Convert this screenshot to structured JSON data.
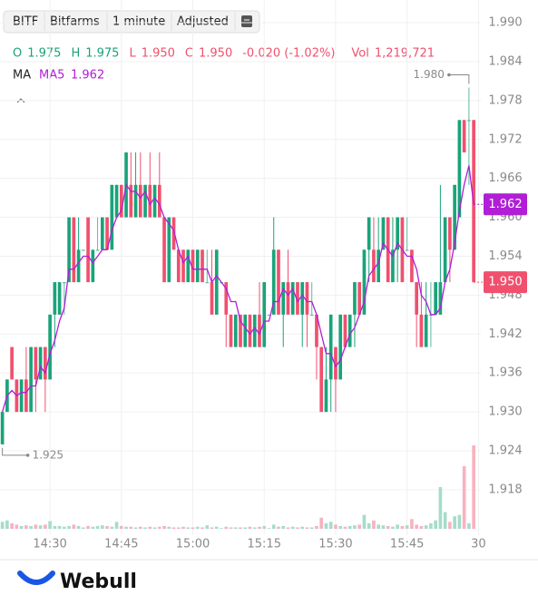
{
  "toolbar": {
    "symbol": "BITF",
    "name": "Bitfarms",
    "interval": "1 minute",
    "adjust": "Adjusted"
  },
  "quote": {
    "ohlc": [
      {
        "label": "O",
        "value": "1.975"
      },
      {
        "label": "H",
        "value": "1.975"
      },
      {
        "label": "L",
        "value": "1.950"
      },
      {
        "label": "C",
        "value": "1.950"
      }
    ],
    "change": "-0.020 (-1.02%)",
    "volume_label": "Vol",
    "volume_total": "1,219,721"
  },
  "indicator": {
    "label": "MA",
    "name": "MA5",
    "value": "1.962"
  },
  "brand": "Webull",
  "chart_data": {
    "type": "candlestick",
    "ylim": [
      1.911,
      1.9935
    ],
    "yticks": [
      {
        "value": 1.99,
        "label": "1.990"
      },
      1.984,
      1.978,
      1.972,
      1.966,
      {
        "value": 1.96,
        "label": "1.960"
      },
      1.954,
      1.948,
      1.942,
      1.936,
      {
        "value": 1.93,
        "label": "1.930"
      },
      1.924,
      1.918
    ],
    "xlim": [
      -0.5,
      100.5
    ],
    "xticks": [
      {
        "value": 10,
        "label": "14:30"
      },
      {
        "value": 25,
        "label": "14:45"
      },
      {
        "value": 40,
        "label": "15:00"
      },
      {
        "value": 55,
        "label": "15:15"
      },
      {
        "value": 70,
        "label": "15:30"
      },
      {
        "value": 85,
        "label": "15:45"
      },
      {
        "value": 100,
        "label": "30"
      }
    ],
    "grid": true,
    "up_color": "#1aa37a",
    "down_color": "#f0506e",
    "doji_color": "#5fb8a0",
    "open": [
      1.925,
      1.93,
      1.94,
      1.935,
      1.93,
      1.935,
      1.93,
      1.94,
      1.935,
      1.94,
      1.935,
      1.945,
      1.945,
      1.95,
      1.95,
      1.96,
      1.95,
      1.955,
      1.96,
      1.95,
      1.955,
      1.955,
      1.96,
      1.955,
      1.96,
      1.965,
      1.96,
      1.965,
      1.96,
      1.965,
      1.96,
      1.965,
      1.96,
      1.965,
      1.96,
      1.95,
      1.96,
      1.955,
      1.955,
      1.95,
      1.955,
      1.95,
      1.955,
      1.95,
      1.95,
      1.945,
      1.95,
      1.95,
      1.945,
      1.94,
      1.945,
      1.94,
      1.945,
      1.94,
      1.945,
      1.94,
      1.945,
      1.945,
      1.955,
      1.945,
      1.95,
      1.945,
      1.95,
      1.945,
      1.95,
      1.945,
      1.945,
      1.94,
      1.93,
      1.935,
      1.94,
      1.935,
      1.945,
      1.94,
      1.945,
      1.95,
      1.945,
      1.955,
      1.955,
      1.95,
      1.955,
      1.96,
      1.95,
      1.955,
      1.96,
      1.955,
      1.955,
      1.95,
      1.945,
      1.94,
      1.945,
      1.945,
      1.945,
      1.95,
      1.96,
      1.955,
      1.96,
      1.975,
      1.975,
      1.975
    ],
    "high": [
      1.93,
      1.935,
      1.94,
      1.935,
      1.935,
      1.94,
      1.94,
      1.94,
      1.94,
      1.94,
      1.945,
      1.95,
      1.95,
      1.95,
      1.96,
      1.96,
      1.96,
      1.955,
      1.96,
      1.955,
      1.96,
      1.96,
      1.96,
      1.965,
      1.965,
      1.965,
      1.97,
      1.97,
      1.97,
      1.97,
      1.965,
      1.97,
      1.965,
      1.97,
      1.96,
      1.96,
      1.96,
      1.955,
      1.955,
      1.955,
      1.955,
      1.955,
      1.955,
      1.955,
      1.955,
      1.955,
      1.95,
      1.95,
      1.945,
      1.945,
      1.945,
      1.945,
      1.945,
      1.945,
      1.95,
      1.95,
      1.945,
      1.96,
      1.955,
      1.95,
      1.955,
      1.95,
      1.95,
      1.95,
      1.95,
      1.95,
      1.945,
      1.94,
      1.94,
      1.945,
      1.94,
      1.945,
      1.945,
      1.945,
      1.95,
      1.95,
      1.955,
      1.96,
      1.96,
      1.96,
      1.96,
      1.96,
      1.96,
      1.96,
      1.96,
      1.96,
      1.955,
      1.95,
      1.95,
      1.95,
      1.95,
      1.95,
      1.965,
      1.96,
      1.96,
      1.965,
      1.975,
      1.975,
      1.98,
      1.975
    ],
    "low": [
      1.925,
      1.93,
      1.935,
      1.93,
      1.93,
      1.93,
      1.93,
      1.93,
      1.935,
      1.93,
      1.935,
      1.94,
      1.945,
      1.945,
      1.95,
      1.95,
      1.95,
      1.955,
      1.95,
      1.95,
      1.955,
      1.955,
      1.955,
      1.955,
      1.96,
      1.96,
      1.96,
      1.96,
      1.96,
      1.96,
      1.96,
      1.96,
      1.96,
      1.96,
      1.95,
      1.95,
      1.955,
      1.95,
      1.95,
      1.95,
      1.95,
      1.95,
      1.95,
      1.95,
      1.945,
      1.945,
      1.95,
      1.94,
      1.94,
      1.94,
      1.94,
      1.94,
      1.94,
      1.94,
      1.94,
      1.94,
      1.945,
      1.945,
      1.945,
      1.94,
      1.945,
      1.945,
      1.945,
      1.94,
      1.94,
      1.945,
      1.935,
      1.93,
      1.93,
      1.93,
      1.93,
      1.935,
      1.94,
      1.94,
      1.94,
      1.945,
      1.945,
      1.95,
      1.95,
      1.95,
      1.955,
      1.95,
      1.95,
      1.95,
      1.95,
      1.955,
      1.95,
      1.94,
      1.94,
      1.94,
      1.94,
      1.945,
      1.945,
      1.95,
      1.95,
      1.955,
      1.96,
      1.97,
      1.965,
      1.95
    ],
    "close": [
      1.93,
      1.935,
      1.935,
      1.93,
      1.935,
      1.93,
      1.94,
      1.935,
      1.94,
      1.935,
      1.945,
      1.95,
      1.95,
      1.95,
      1.96,
      1.95,
      1.955,
      1.955,
      1.95,
      1.955,
      1.955,
      1.96,
      1.955,
      1.965,
      1.965,
      1.96,
      1.97,
      1.96,
      1.965,
      1.96,
      1.965,
      1.96,
      1.965,
      1.96,
      1.95,
      1.96,
      1.955,
      1.95,
      1.95,
      1.955,
      1.95,
      1.955,
      1.95,
      1.95,
      1.945,
      1.955,
      1.95,
      1.945,
      1.94,
      1.945,
      1.94,
      1.945,
      1.94,
      1.945,
      1.94,
      1.95,
      1.945,
      1.955,
      1.945,
      1.95,
      1.945,
      1.95,
      1.945,
      1.95,
      1.945,
      1.945,
      1.94,
      1.93,
      1.935,
      1.945,
      1.935,
      1.945,
      1.94,
      1.945,
      1.95,
      1.945,
      1.955,
      1.96,
      1.95,
      1.955,
      1.96,
      1.95,
      1.955,
      1.96,
      1.95,
      1.955,
      1.95,
      1.945,
      1.94,
      1.945,
      1.945,
      1.95,
      1.95,
      1.96,
      1.955,
      1.965,
      1.975,
      1.97,
      1.975,
      1.95
    ],
    "volume": [
      5000,
      6000,
      4000,
      3000,
      2000,
      2500,
      2000,
      3000,
      2500,
      3000,
      5500,
      2000,
      2000,
      1500,
      2000,
      3000,
      2000,
      1000,
      2000,
      1500,
      2000,
      2500,
      2000,
      1500,
      5000,
      2000,
      1500,
      1500,
      1000,
      1500,
      1000,
      1500,
      1000,
      1500,
      2000,
      1500,
      1000,
      1000,
      1500,
      1000,
      1000,
      1500,
      1000,
      2500,
      1000,
      1500,
      500,
      1500,
      1000,
      1000,
      1000,
      1000,
      1500,
      1000,
      1500,
      2000,
      500,
      3000,
      1500,
      2000,
      1000,
      1500,
      1000,
      1500,
      1000,
      1000,
      2000,
      8000,
      4000,
      5000,
      3000,
      2000,
      1500,
      2000,
      2500,
      3000,
      10000,
      4000,
      6000,
      3000,
      2500,
      2000,
      1500,
      3000,
      2000,
      2500,
      7000,
      3000,
      2000,
      2500,
      4000,
      6000,
      30000,
      12000,
      5000,
      9000,
      10000,
      45000,
      4000,
      60000
    ],
    "ma": {
      "name": "MA5",
      "color": "#b01ed6",
      "values": [
        1.93,
        1.9325,
        1.9333,
        1.9325,
        1.933,
        1.933,
        1.934,
        1.934,
        1.937,
        1.936,
        1.939,
        1.941,
        1.944,
        1.946,
        1.952,
        1.952,
        1.953,
        1.954,
        1.954,
        1.953,
        1.954,
        1.955,
        1.955,
        1.958,
        1.96,
        1.961,
        1.965,
        1.964,
        1.964,
        1.963,
        1.964,
        1.962,
        1.963,
        1.962,
        1.96,
        1.959,
        1.958,
        1.955,
        1.953,
        1.954,
        1.952,
        1.952,
        1.952,
        1.952,
        1.95,
        1.951,
        1.95,
        1.949,
        1.947,
        1.947,
        1.944,
        1.943,
        1.942,
        1.943,
        1.942,
        1.944,
        1.944,
        1.947,
        1.947,
        1.949,
        1.948,
        1.949,
        1.947,
        1.948,
        1.947,
        1.947,
        1.945,
        1.942,
        1.939,
        1.939,
        1.937,
        1.938,
        1.94,
        1.942,
        1.943,
        1.945,
        1.947,
        1.951,
        1.952,
        1.953,
        1.956,
        1.955,
        1.954,
        1.956,
        1.955,
        1.954,
        1.954,
        1.952,
        1.948,
        1.947,
        1.945,
        1.945,
        1.946,
        1.95,
        1.952,
        1.956,
        1.961,
        1.965,
        1.968,
        1.962
      ]
    },
    "annotations": {
      "high": "1.980",
      "low": "1.925",
      "last": "1.950"
    }
  }
}
